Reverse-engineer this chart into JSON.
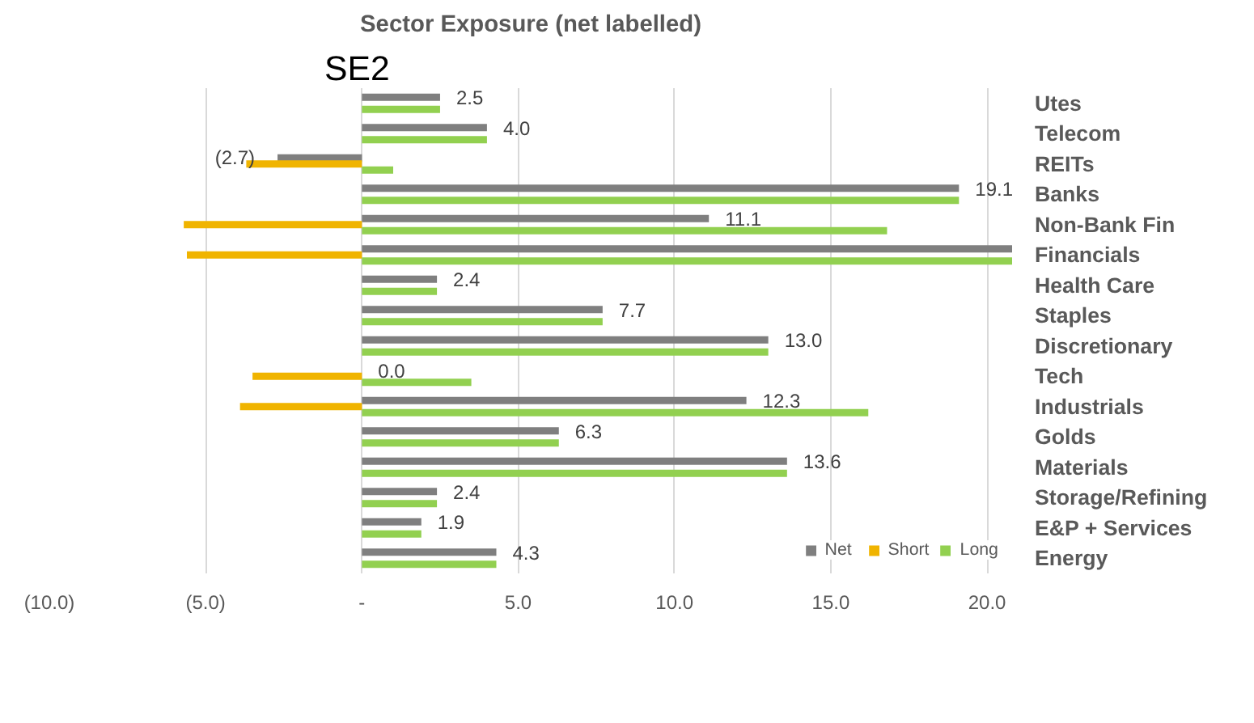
{
  "chart_data": {
    "type": "bar",
    "orientation": "horizontal",
    "title": "Sector Exposure (net labelled)",
    "annotations": [
      "SE2"
    ],
    "categories": [
      "Utes",
      "Telecom",
      "REITs",
      "Banks",
      "Non-Bank Fin",
      "Financials",
      "Health Care",
      "Staples",
      "Discretionary",
      "Tech",
      "Industrials",
      "Golds",
      "Materials",
      "Storage/Refining",
      "E&P + Services",
      "Energy"
    ],
    "series": [
      {
        "name": "Net",
        "color": "#7f7f7f",
        "values": [
          2.5,
          4.0,
          -2.7,
          19.1,
          11.1,
          20.8,
          2.4,
          7.7,
          13.0,
          0.0,
          12.3,
          6.3,
          13.6,
          2.4,
          1.9,
          4.3
        ],
        "value_labels": [
          "2.5",
          "4.0",
          "(2.7)",
          "19.1",
          "11.1",
          null,
          "2.4",
          "7.7",
          "13.0",
          "0.0",
          "12.3",
          "6.3",
          "13.6",
          "2.4",
          "1.9",
          "4.3"
        ]
      },
      {
        "name": "Short",
        "color": "#f0b400",
        "values": [
          null,
          null,
          -3.7,
          null,
          -5.7,
          -5.6,
          null,
          null,
          null,
          -3.5,
          -3.9,
          null,
          null,
          null,
          null,
          null
        ]
      },
      {
        "name": "Long",
        "color": "#92d050",
        "values": [
          2.5,
          4.0,
          1.0,
          19.1,
          16.8,
          20.8,
          2.4,
          7.7,
          13.0,
          3.5,
          16.2,
          6.3,
          13.6,
          2.4,
          1.9,
          4.3
        ]
      }
    ],
    "xlim": [
      -10,
      20.8
    ],
    "xticks": [
      {
        "value": -10,
        "label": "(10.0)"
      },
      {
        "value": -5,
        "label": "(5.0)"
      },
      {
        "value": 0,
        "label": "-"
      },
      {
        "value": 5,
        "label": "5.0"
      },
      {
        "value": 10,
        "label": "10.0"
      },
      {
        "value": 15,
        "label": "15.0"
      },
      {
        "value": 20,
        "label": "20.0"
      }
    ],
    "grid": "x",
    "legend": "bottom right"
  }
}
